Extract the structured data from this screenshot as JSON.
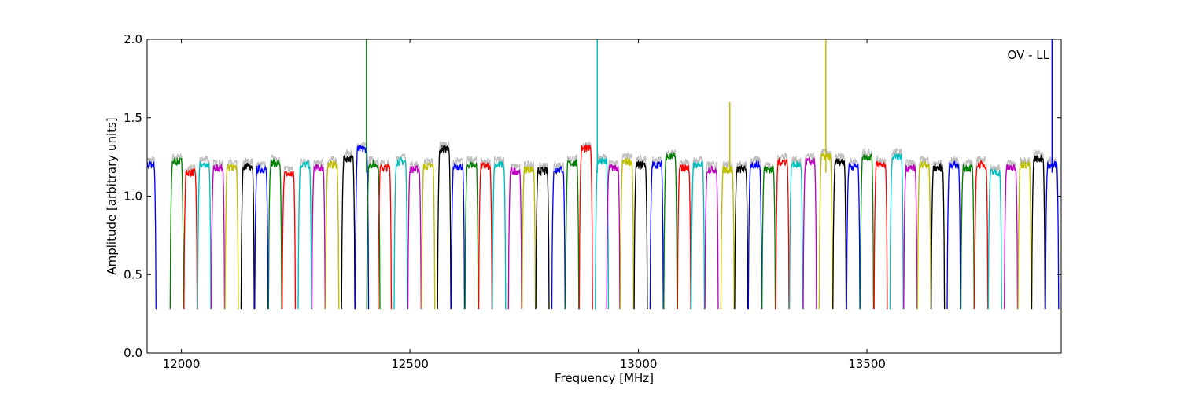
{
  "chart_data": {
    "type": "line",
    "title": "",
    "annotation": "OV - LL",
    "xlabel": "Frequency [MHz]",
    "ylabel": "Amplitude [arbitrary units]",
    "xlim": [
      11925,
      13925
    ],
    "ylim": [
      0.0,
      2.0
    ],
    "xticks": [
      12000,
      12500,
      13000,
      13500
    ],
    "xtick_labels": [
      "12000",
      "12500",
      "13000",
      "13500"
    ],
    "yticks": [
      0.0,
      0.5,
      1.0,
      1.5,
      2.0
    ],
    "ytick_labels": [
      "0.0",
      "0.5",
      "1.0",
      "1.5",
      "2.0"
    ],
    "grid": false,
    "color_cycle": [
      "#0000ff",
      "#007f00",
      "#ff0000",
      "#00bfbf",
      "#bf00bf",
      "#bfbf00",
      "#000000"
    ],
    "background_color": "#bfbfbf",
    "channel_width_mhz": 31.25,
    "subbands": [
      {
        "center": 11930,
        "level": 1.2,
        "color": "#0000ff"
      },
      {
        "center": 11990,
        "level": 1.22,
        "color": "#007f00"
      },
      {
        "center": 12020,
        "level": 1.15,
        "color": "#ff0000"
      },
      {
        "center": 12050,
        "level": 1.2,
        "color": "#00bfbf"
      },
      {
        "center": 12080,
        "level": 1.18,
        "color": "#bf00bf"
      },
      {
        "center": 12110,
        "level": 1.18,
        "color": "#bfbf00"
      },
      {
        "center": 12145,
        "level": 1.19,
        "color": "#000000"
      },
      {
        "center": 12175,
        "level": 1.17,
        "color": "#0000ff"
      },
      {
        "center": 12205,
        "level": 1.21,
        "color": "#007f00"
      },
      {
        "center": 12235,
        "level": 1.14,
        "color": "#ff0000"
      },
      {
        "center": 12270,
        "level": 1.2,
        "color": "#00bfbf"
      },
      {
        "center": 12300,
        "level": 1.18,
        "color": "#bf00bf"
      },
      {
        "center": 12330,
        "level": 1.2,
        "color": "#bfbf00"
      },
      {
        "center": 12365,
        "level": 1.24,
        "color": "#000000"
      },
      {
        "center": 12395,
        "level": 1.3,
        "color": "#0000ff"
      },
      {
        "center": 12420,
        "level": 1.2,
        "color": "#007f00"
      },
      {
        "center": 12445,
        "level": 1.18,
        "color": "#ff0000"
      },
      {
        "center": 12480,
        "level": 1.22,
        "color": "#00bfbf"
      },
      {
        "center": 12510,
        "level": 1.17,
        "color": "#bf00bf"
      },
      {
        "center": 12540,
        "level": 1.19,
        "color": "#bfbf00"
      },
      {
        "center": 12575,
        "level": 1.3,
        "color": "#000000"
      },
      {
        "center": 12605,
        "level": 1.19,
        "color": "#0000ff"
      },
      {
        "center": 12635,
        "level": 1.2,
        "color": "#007f00"
      },
      {
        "center": 12665,
        "level": 1.19,
        "color": "#ff0000"
      },
      {
        "center": 12695,
        "level": 1.2,
        "color": "#00bfbf"
      },
      {
        "center": 12730,
        "level": 1.16,
        "color": "#bf00bf"
      },
      {
        "center": 12760,
        "level": 1.17,
        "color": "#bfbf00"
      },
      {
        "center": 12790,
        "level": 1.16,
        "color": "#000000"
      },
      {
        "center": 12825,
        "level": 1.17,
        "color": "#0000ff"
      },
      {
        "center": 12855,
        "level": 1.21,
        "color": "#007f00"
      },
      {
        "center": 12885,
        "level": 1.3,
        "color": "#ff0000"
      },
      {
        "center": 12920,
        "level": 1.22,
        "color": "#00bfbf"
      },
      {
        "center": 12945,
        "level": 1.18,
        "color": "#bf00bf"
      },
      {
        "center": 12975,
        "level": 1.22,
        "color": "#bfbf00"
      },
      {
        "center": 13005,
        "level": 1.2,
        "color": "#000000"
      },
      {
        "center": 13040,
        "level": 1.2,
        "color": "#0000ff"
      },
      {
        "center": 13070,
        "level": 1.25,
        "color": "#007f00"
      },
      {
        "center": 13100,
        "level": 1.18,
        "color": "#ff0000"
      },
      {
        "center": 13130,
        "level": 1.2,
        "color": "#00bfbf"
      },
      {
        "center": 13160,
        "level": 1.17,
        "color": "#bf00bf"
      },
      {
        "center": 13195,
        "level": 1.17,
        "color": "#bfbf00"
      },
      {
        "center": 13225,
        "level": 1.17,
        "color": "#000000"
      },
      {
        "center": 13255,
        "level": 1.2,
        "color": "#0000ff"
      },
      {
        "center": 13285,
        "level": 1.17,
        "color": "#007f00"
      },
      {
        "center": 13315,
        "level": 1.22,
        "color": "#ff0000"
      },
      {
        "center": 13345,
        "level": 1.2,
        "color": "#00bfbf"
      },
      {
        "center": 13375,
        "level": 1.22,
        "color": "#bf00bf"
      },
      {
        "center": 13410,
        "level": 1.25,
        "color": "#bfbf00"
      },
      {
        "center": 13440,
        "level": 1.22,
        "color": "#000000"
      },
      {
        "center": 13470,
        "level": 1.19,
        "color": "#0000ff"
      },
      {
        "center": 13500,
        "level": 1.25,
        "color": "#007f00"
      },
      {
        "center": 13530,
        "level": 1.2,
        "color": "#ff0000"
      },
      {
        "center": 13565,
        "level": 1.25,
        "color": "#00bfbf"
      },
      {
        "center": 13595,
        "level": 1.18,
        "color": "#bf00bf"
      },
      {
        "center": 13625,
        "level": 1.2,
        "color": "#bfbf00"
      },
      {
        "center": 13655,
        "level": 1.18,
        "color": "#000000"
      },
      {
        "center": 13690,
        "level": 1.2,
        "color": "#0000ff"
      },
      {
        "center": 13720,
        "level": 1.18,
        "color": "#007f00"
      },
      {
        "center": 13750,
        "level": 1.2,
        "color": "#ff0000"
      },
      {
        "center": 13780,
        "level": 1.15,
        "color": "#00bfbf"
      },
      {
        "center": 13815,
        "level": 1.18,
        "color": "#bf00bf"
      },
      {
        "center": 13845,
        "level": 1.2,
        "color": "#bfbf00"
      },
      {
        "center": 13875,
        "level": 1.24,
        "color": "#000000"
      },
      {
        "center": 13905,
        "level": 1.2,
        "color": "#0000ff"
      }
    ],
    "spikes": [
      {
        "x": 12405,
        "y": 2.0,
        "color": "#007f00"
      },
      {
        "x": 12910,
        "y": 2.0,
        "color": "#00bfbf"
      },
      {
        "x": 13200,
        "y": 1.6,
        "color": "#bfbf00"
      },
      {
        "x": 13410,
        "y": 2.0,
        "color": "#bfbf00"
      },
      {
        "x": 13905,
        "y": 2.0,
        "color": "#0000ff"
      }
    ]
  }
}
